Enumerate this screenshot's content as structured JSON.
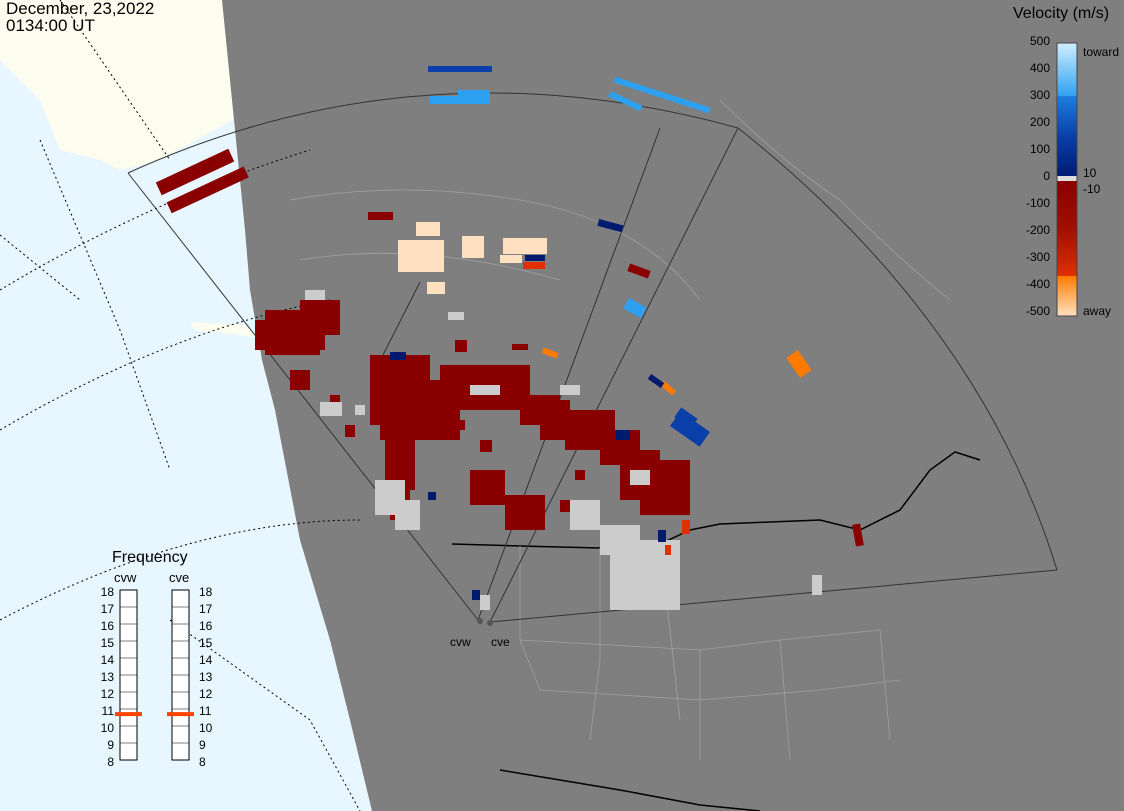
{
  "header": {
    "date": "December, 23,2022",
    "time": "0134:00 UT"
  },
  "velocity_scale": {
    "title": "Velocity (m/s)",
    "ticks": [
      "500",
      "400",
      "300",
      "200",
      "100",
      "0",
      "-100",
      "-200",
      "-300",
      "-400",
      "-500"
    ],
    "inner_ticks": [
      "10",
      "-10"
    ],
    "toward_label": "toward",
    "away_label": "away",
    "colors": {
      "toward_max": "#cfeeff",
      "toward_mid": "#2ea0f0",
      "toward_low": "#0a3ea8",
      "toward_min": "#001a70",
      "away_min": "#8a0000",
      "away_mid": "#c02000",
      "away_orange": "#ff7a00",
      "away_max": "#ffe0c0",
      "ground_scatter": "#cccccc"
    }
  },
  "frequency_panel": {
    "title": "Frequency",
    "radars": [
      "cvw",
      "cve"
    ],
    "levels": [
      "18",
      "17",
      "16",
      "15",
      "14",
      "13",
      "12",
      "11",
      "10",
      "9",
      "8"
    ],
    "cvw_frequency": 10.7,
    "cve_frequency": 10.7,
    "marker_color": "#ff4400"
  },
  "sites": {
    "west": "cvw",
    "east": "cve"
  },
  "map_colors": {
    "land": "#7f7f7f",
    "ocean": "#e8f6ff",
    "ice": "#fdfdef",
    "borders": "#9a9a9a"
  }
}
